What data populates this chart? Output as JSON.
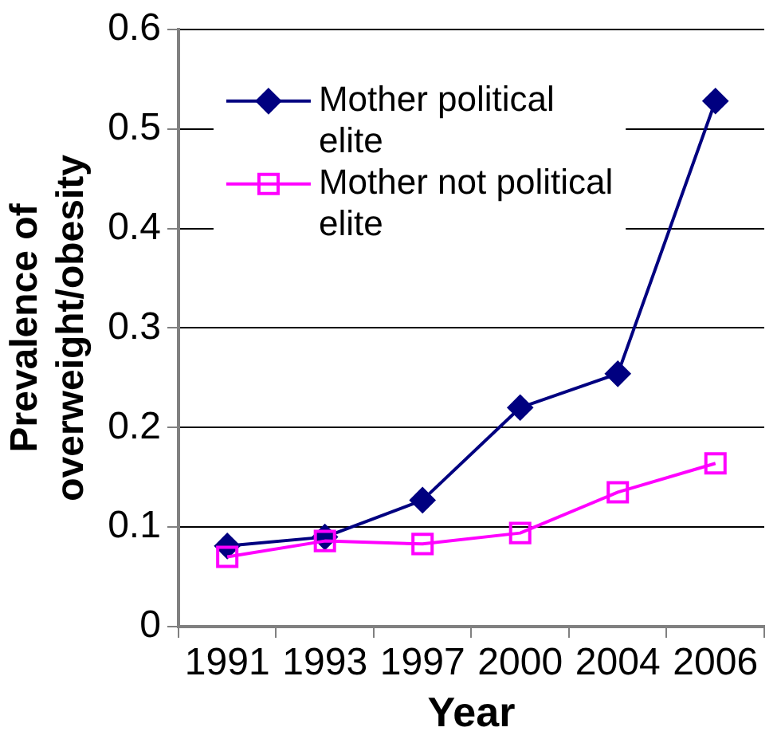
{
  "chart_data": {
    "type": "line",
    "xlabel": "Year",
    "ylabel": "Prevalence of overweight/obesity",
    "categories": [
      "1991",
      "1993",
      "1997",
      "2000",
      "2004",
      "2006"
    ],
    "ylim": [
      0,
      0.6
    ],
    "yticks": [
      0,
      0.1,
      0.2,
      0.3,
      0.4,
      0.5,
      0.6
    ],
    "grid": "y",
    "legend": "top left",
    "series": [
      {
        "name": "Mother political elite",
        "color": "#000080",
        "marker": "diamond",
        "values": [
          0.081,
          0.09,
          0.127,
          0.22,
          0.254,
          0.528
        ]
      },
      {
        "name": "Mother not political elite",
        "color": "#ff00ff",
        "marker": "square",
        "values": [
          0.07,
          0.086,
          0.083,
          0.094,
          0.135,
          0.164
        ]
      }
    ]
  }
}
